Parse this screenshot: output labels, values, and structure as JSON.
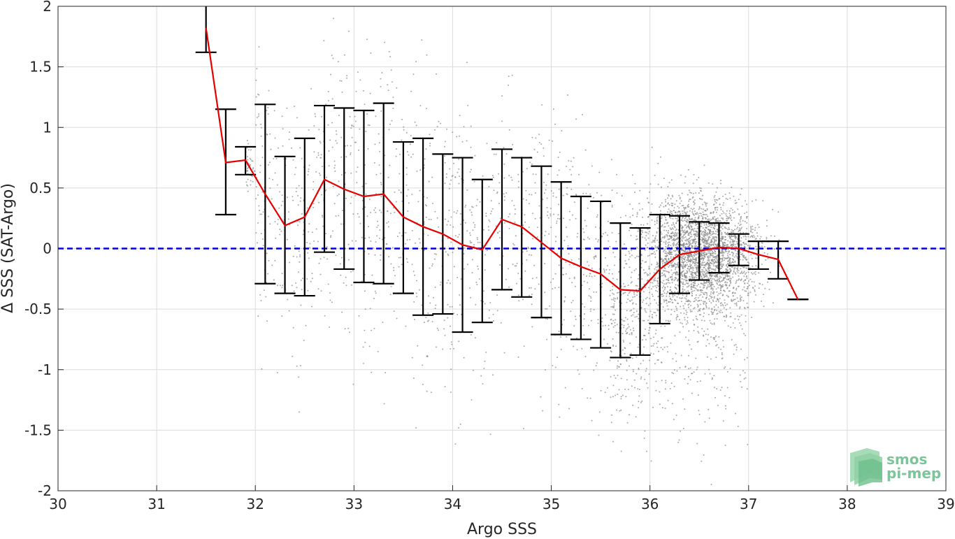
{
  "chart_data": {
    "type": "scatter",
    "xlabel": "Argo SSS",
    "ylabel": "Δ SSS (SAT-Argo)",
    "xlim": [
      30,
      39
    ],
    "ylim": [
      -2,
      2
    ],
    "xticks": [
      "30",
      "31",
      "32",
      "33",
      "34",
      "35",
      "36",
      "37",
      "38",
      "39"
    ],
    "yticks": [
      "-2",
      "-1.5",
      "-1",
      "-0.5",
      "0",
      "0.5",
      "1",
      "1.5",
      "2"
    ],
    "grid": true,
    "reference_line": {
      "y": 0,
      "color": "#0000dd",
      "style": "dashed"
    },
    "series": [
      {
        "kind": "binned-mean-with-std",
        "color": "#e60000",
        "x": [
          31.5,
          31.7,
          31.9,
          32.1,
          32.3,
          32.5,
          32.7,
          32.9,
          33.1,
          33.3,
          33.5,
          33.7,
          33.9,
          34.1,
          34.3,
          34.5,
          34.7,
          34.9,
          35.1,
          35.3,
          35.5,
          35.7,
          35.9,
          36.1,
          36.3,
          36.5,
          36.7,
          36.9,
          37.1,
          37.3,
          37.5
        ],
        "mean": [
          1.82,
          0.71,
          0.73,
          0.45,
          0.19,
          0.26,
          0.57,
          0.49,
          0.43,
          0.45,
          0.26,
          0.18,
          0.12,
          0.03,
          -0.01,
          0.24,
          0.18,
          0.05,
          -0.08,
          -0.15,
          -0.21,
          -0.34,
          -0.35,
          -0.17,
          -0.05,
          -0.02,
          0.01,
          0.0,
          -0.05,
          -0.09,
          -0.42
        ],
        "upper": [
          2.0,
          1.15,
          0.84,
          1.19,
          0.76,
          0.91,
          1.18,
          1.16,
          1.14,
          1.2,
          0.88,
          0.91,
          0.78,
          0.75,
          0.57,
          0.82,
          0.75,
          0.68,
          0.55,
          0.43,
          0.39,
          0.21,
          0.17,
          0.28,
          0.27,
          0.22,
          0.21,
          0.12,
          0.06,
          0.06,
          -0.42
        ],
        "lower": [
          1.62,
          0.28,
          0.61,
          -0.29,
          -0.37,
          -0.39,
          -0.03,
          -0.17,
          -0.28,
          -0.29,
          -0.37,
          -0.55,
          -0.54,
          -0.69,
          -0.61,
          -0.34,
          -0.4,
          -0.57,
          -0.71,
          -0.75,
          -0.82,
          -0.9,
          -0.88,
          -0.62,
          -0.37,
          -0.26,
          -0.2,
          -0.14,
          -0.17,
          -0.25,
          -0.42
        ]
      },
      {
        "kind": "scatter-cloud",
        "color": "#8c8c8c"
      }
    ],
    "watermark": {
      "line1": "smos",
      "line2": "pi-mep"
    }
  }
}
